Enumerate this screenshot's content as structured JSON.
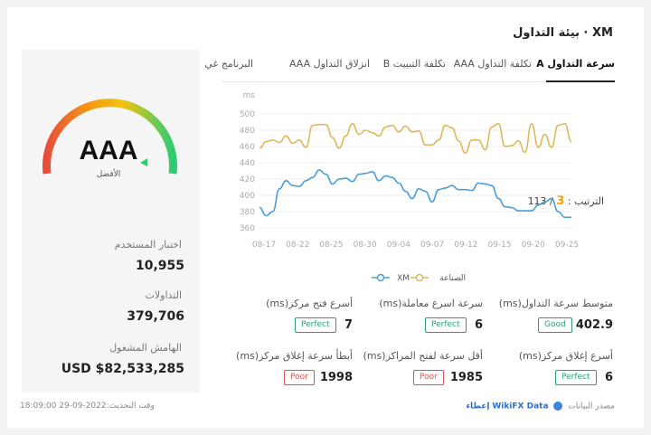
{
  "title": "XM ⋅ بيئة التداول",
  "tabs": [
    {
      "label": "سرعة التداول A",
      "active": true
    },
    {
      "label": "تكلفة التداول AAA",
      "active": false
    },
    {
      "label": "تكلفة التبييت B",
      "active": false
    },
    {
      "label": "انزلاق التداول AAA",
      "active": false
    },
    {
      "label": "البرنامج غي",
      "active": false
    }
  ],
  "side": {
    "grade": "AAA",
    "grade_sub": "الأفضل",
    "rank_label": "الترتيب :",
    "rank_value": "3",
    "rank_total": "/ 113",
    "user_test_label": "اختبار المستخدم",
    "user_test_value": "10,955",
    "trades_label": "التداولات",
    "trades_value": "379,706",
    "margin_label": "الهامش المشغول",
    "margin_value": "USD $82,533,285"
  },
  "chart_data": {
    "type": "line",
    "ylabel": "ms",
    "ylim": [
      360,
      500
    ],
    "yticks": [
      360,
      380,
      400,
      420,
      440,
      460,
      480,
      500
    ],
    "xticks": [
      "08-17",
      "08-22",
      "08-25",
      "08-30",
      "09-04",
      "09-07",
      "09-12",
      "09-15",
      "09-20",
      "09-25"
    ],
    "series": [
      {
        "name": "XM",
        "color": "#4a9fd8",
        "values": [
          385,
          375,
          380,
          408,
          418,
          412,
          411,
          418,
          422,
          431,
          426,
          414,
          420,
          421,
          417,
          426,
          427,
          429,
          418,
          424,
          422,
          415,
          405,
          396,
          408,
          405,
          392,
          407,
          409,
          412,
          407,
          407,
          406,
          415,
          414,
          412,
          396,
          386,
          385,
          381,
          381,
          381,
          388,
          392,
          396,
          380,
          373,
          373
        ]
      },
      {
        "name": "الصناعة",
        "color": "#e0b85c",
        "values": [
          458,
          466,
          468,
          465,
          473,
          464,
          468,
          459,
          486,
          487,
          487,
          471,
          458,
          473,
          488,
          475,
          480,
          477,
          473,
          484,
          486,
          478,
          485,
          478,
          479,
          462,
          462,
          468,
          486,
          483,
          467,
          452,
          468,
          468,
          456,
          484,
          488,
          460,
          461,
          467,
          453,
          488,
          459,
          475,
          459,
          486,
          488,
          466
        ]
      }
    ]
  },
  "metrics": [
    {
      "label": "متوسط سرعة التداول(ms)",
      "value": "402.9",
      "badge": "Good",
      "status": "good"
    },
    {
      "label": "سرعة اسرع معاملة(ms)",
      "value": "6",
      "badge": "Perfect",
      "status": "good"
    },
    {
      "label": "أسرع فتح مركز(ms)",
      "value": "7",
      "badge": "Perfect",
      "status": "good"
    },
    {
      "label": "أسرع إغلاق مركز(ms)",
      "value": "6",
      "badge": "Perfect",
      "status": "good"
    },
    {
      "label": "أقل سرعة لفتح المراكز(ms)",
      "value": "1985",
      "badge": "Poor",
      "status": "poor"
    },
    {
      "label": "أبطأ سرعة إغلاق مركز(ms)",
      "value": "1998",
      "badge": "Poor",
      "status": "poor"
    }
  ],
  "footer": {
    "source_label": "مصدر البيانات",
    "source_name": "WikiFX Data",
    "source_suffix": "إعطاء",
    "updated": "وقت التحديث:2022-09-29 18:09:00"
  }
}
